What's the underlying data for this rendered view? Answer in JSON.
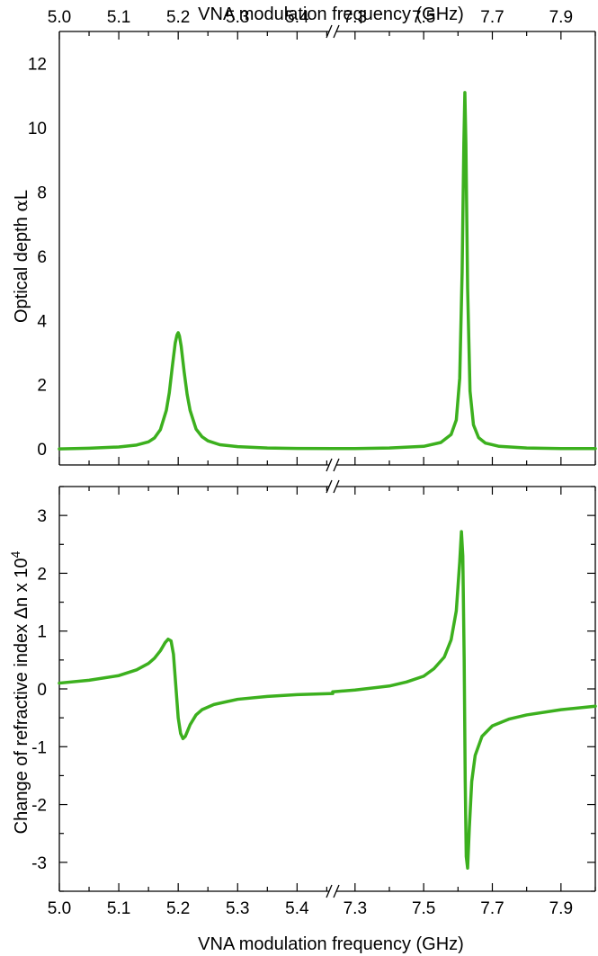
{
  "figure": {
    "top_xlabel": "VNA modulation frequency (GHz)",
    "bottom_xlabel": "VNA modulation frequency (GHz)",
    "line_color": "#3cb01e"
  },
  "chart_data": [
    {
      "type": "line",
      "panel": "top",
      "ylabel": "Optical depth αL",
      "ylabel_parts": [
        "Optical depth ",
        "α",
        "L"
      ],
      "xlabel": "VNA modulation frequency (GHz)",
      "x_axis_broken": true,
      "x_segments": [
        [
          5.0,
          5.46
        ],
        [
          7.235,
          8.0
        ]
      ],
      "x_tick_labels": [
        "5.0",
        "5.1",
        "5.2",
        "5.3",
        "5.4",
        "7.3",
        "7.5",
        "7.7",
        "7.9"
      ],
      "y_ticks": [
        0,
        2,
        4,
        6,
        8,
        10,
        12
      ],
      "ylim": [
        -0.5,
        13.0
      ],
      "grid": false,
      "series": [
        {
          "x": [
            5.0,
            5.05,
            5.1,
            5.13,
            5.15,
            5.16,
            5.17,
            5.18,
            5.185,
            5.19,
            5.195,
            5.198,
            5.2,
            5.202,
            5.205,
            5.21,
            5.215,
            5.22,
            5.23,
            5.24,
            5.25,
            5.27,
            5.3,
            5.35,
            5.4,
            5.46
          ],
          "y": [
            0.0,
            0.02,
            0.06,
            0.12,
            0.22,
            0.34,
            0.6,
            1.2,
            1.75,
            2.55,
            3.3,
            3.55,
            3.62,
            3.52,
            3.2,
            2.4,
            1.7,
            1.2,
            0.62,
            0.38,
            0.25,
            0.13,
            0.07,
            0.03,
            0.015,
            0.01
          ]
        },
        {
          "x": [
            7.235,
            7.3,
            7.4,
            7.5,
            7.55,
            7.58,
            7.595,
            7.605,
            7.612,
            7.617,
            7.62,
            7.623,
            7.628,
            7.635,
            7.645,
            7.66,
            7.68,
            7.72,
            7.8,
            7.9,
            8.0
          ],
          "y": [
            0.01,
            0.01,
            0.03,
            0.08,
            0.2,
            0.45,
            0.9,
            2.2,
            5.5,
            9.5,
            11.1,
            9.5,
            5.0,
            1.8,
            0.75,
            0.35,
            0.18,
            0.08,
            0.03,
            0.01,
            0.01
          ]
        }
      ]
    },
    {
      "type": "line",
      "panel": "bottom",
      "ylabel": "Change of refractive index Δn x 10",
      "ylabel_exponent": "4",
      "xlabel": "VNA modulation frequency (GHz)",
      "x_axis_broken": true,
      "x_segments": [
        [
          5.0,
          5.46
        ],
        [
          7.235,
          8.0
        ]
      ],
      "x_tick_labels": [
        "5.0",
        "5.1",
        "5.2",
        "5.3",
        "5.4",
        "7.3",
        "7.5",
        "7.7",
        "7.9"
      ],
      "y_ticks": [
        -3,
        -2,
        -1,
        0,
        1,
        2,
        3
      ],
      "ylim": [
        -3.5,
        3.5
      ],
      "grid": false,
      "series": [
        {
          "x": [
            5.0,
            5.05,
            5.1,
            5.13,
            5.15,
            5.16,
            5.17,
            5.178,
            5.183,
            5.188,
            5.192,
            5.196,
            5.2,
            5.204,
            5.208,
            5.212,
            5.216,
            5.22,
            5.23,
            5.24,
            5.26,
            5.3,
            5.35,
            5.4,
            5.46
          ],
          "y": [
            0.1,
            0.15,
            0.23,
            0.33,
            0.44,
            0.53,
            0.66,
            0.8,
            0.86,
            0.83,
            0.6,
            0.05,
            -0.5,
            -0.77,
            -0.86,
            -0.82,
            -0.72,
            -0.62,
            -0.45,
            -0.36,
            -0.27,
            -0.18,
            -0.13,
            -0.1,
            -0.08
          ]
        },
        {
          "x": [
            7.235,
            7.3,
            7.4,
            7.45,
            7.5,
            7.53,
            7.56,
            7.58,
            7.595,
            7.605,
            7.61,
            7.614,
            7.618,
            7.621,
            7.624,
            7.628,
            7.633,
            7.64,
            7.65,
            7.67,
            7.7,
            7.75,
            7.8,
            7.9,
            8.0
          ],
          "y": [
            -0.05,
            -0.02,
            0.05,
            0.12,
            0.22,
            0.35,
            0.55,
            0.85,
            1.35,
            2.2,
            2.72,
            2.3,
            0.5,
            -1.6,
            -2.9,
            -3.1,
            -2.4,
            -1.6,
            -1.15,
            -0.82,
            -0.64,
            -0.52,
            -0.45,
            -0.36,
            -0.3
          ]
        }
      ]
    }
  ]
}
